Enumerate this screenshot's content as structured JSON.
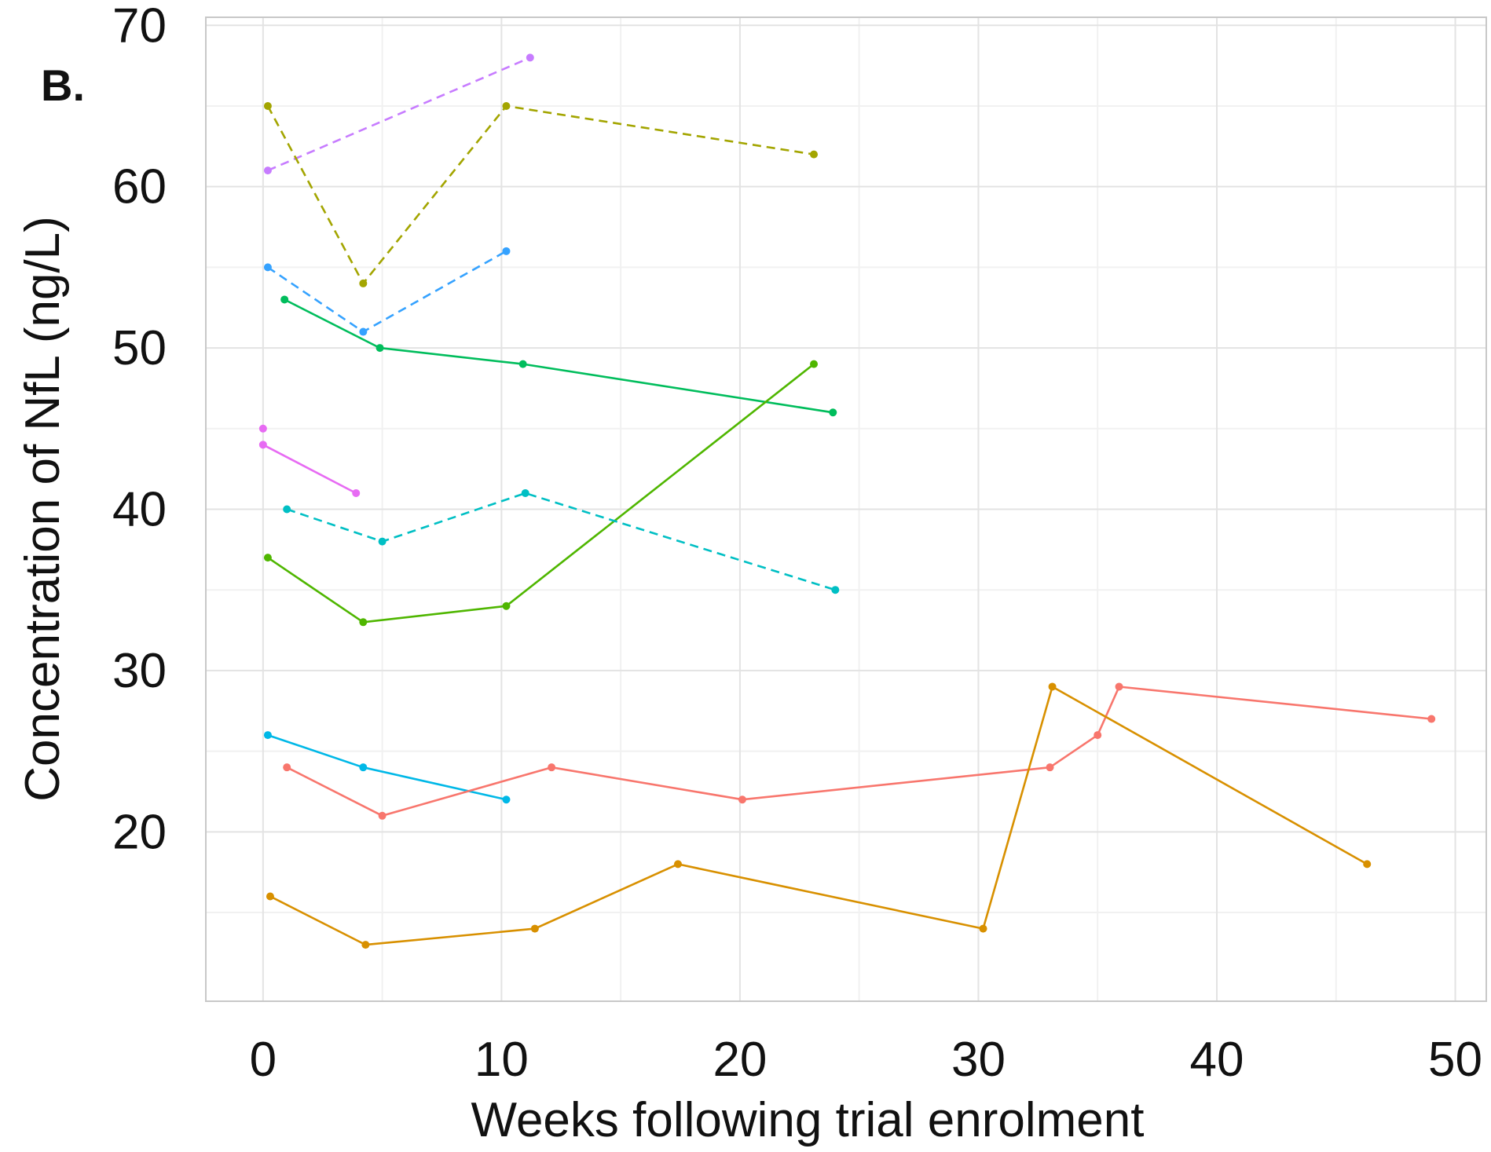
{
  "chart_data": {
    "type": "line",
    "panel_label": "B.",
    "xlabel": "Weeks following trial enrolment",
    "ylabel": "Concentration of NfL (ng/L)",
    "xlim": [
      -2.4,
      51.3
    ],
    "ylim": [
      9.5,
      70.5
    ],
    "x_ticks": [
      0,
      10,
      20,
      30,
      40,
      50
    ],
    "y_ticks": [
      20,
      30,
      40,
      50,
      60,
      70
    ],
    "x_tick_labels": [
      "0",
      "10",
      "20",
      "30",
      "40",
      "50"
    ],
    "y_tick_labels": [
      "20",
      "30",
      "40",
      "50",
      "60",
      "70"
    ],
    "grid": true,
    "legend": "none",
    "series": [
      {
        "color": "#C77CFF",
        "dash": "dashed",
        "x": [
          0.2,
          11.2
        ],
        "y": [
          61,
          68
        ]
      },
      {
        "color": "#A3A500",
        "dash": "dashed",
        "x": [
          0.2,
          4.2,
          10.2,
          23.1
        ],
        "y": [
          65,
          54,
          65,
          62
        ]
      },
      {
        "color": "#35A2FF",
        "dash": "dashed",
        "x": [
          0.2,
          4.2,
          10.2
        ],
        "y": [
          55,
          51,
          56
        ]
      },
      {
        "color": "#00BD5C",
        "dash": "solid",
        "x": [
          0.9,
          4.9,
          10.9,
          23.9
        ],
        "y": [
          53,
          50,
          49,
          46
        ]
      },
      {
        "color": "#4FB600",
        "dash": "solid",
        "x": [
          0.2,
          4.2,
          10.2,
          23.1
        ],
        "y": [
          37,
          33,
          34,
          49
        ]
      },
      {
        "color": "#E76BF3",
        "dash": "solid",
        "x": [
          0.0
        ],
        "y": [
          45
        ]
      },
      {
        "color": "#E76BF3",
        "dash": "solid",
        "x": [
          0.0,
          3.9
        ],
        "y": [
          44,
          41
        ]
      },
      {
        "color": "#00BFC4",
        "dash": "dashed",
        "x": [
          1.0,
          5.0,
          11.0,
          24.0
        ],
        "y": [
          40,
          38,
          41,
          35
        ]
      },
      {
        "color": "#00B8E7",
        "dash": "solid",
        "x": [
          0.2,
          4.2,
          10.2
        ],
        "y": [
          26,
          24,
          22
        ]
      },
      {
        "color": "#F8766D",
        "dash": "solid",
        "x": [
          1.0,
          5.0,
          12.1,
          20.1,
          33.0,
          35.0,
          35.9,
          49.0
        ],
        "y": [
          24,
          21,
          24,
          22,
          24,
          26,
          29,
          27
        ]
      },
      {
        "color": "#D89000",
        "dash": "solid",
        "x": [
          0.3,
          4.3,
          11.4,
          17.4,
          30.2,
          33.1,
          46.3
        ],
        "y": [
          16,
          13,
          14,
          18,
          14,
          29,
          18
        ]
      }
    ]
  }
}
